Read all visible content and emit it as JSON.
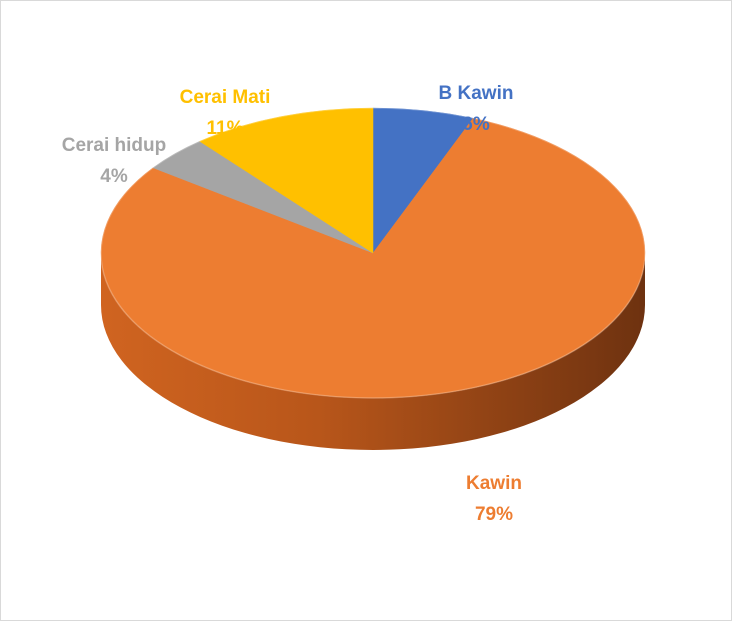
{
  "chart_data": {
    "type": "pie",
    "style": "3d",
    "title": "",
    "slices": [
      {
        "name": "B Kawin",
        "value": 6,
        "label": "6%",
        "color": "#4472c4"
      },
      {
        "name": "Kawin",
        "value": 79,
        "label": "79%",
        "color": "#ed7d31"
      },
      {
        "name": "Cerai hidup",
        "value": 4,
        "label": "4%",
        "color": "#a5a5a5"
      },
      {
        "name": "Cerai Mati",
        "value": 11,
        "label": "11%",
        "color": "#ffc000"
      }
    ],
    "legend": "none",
    "data_labels": "outside"
  }
}
